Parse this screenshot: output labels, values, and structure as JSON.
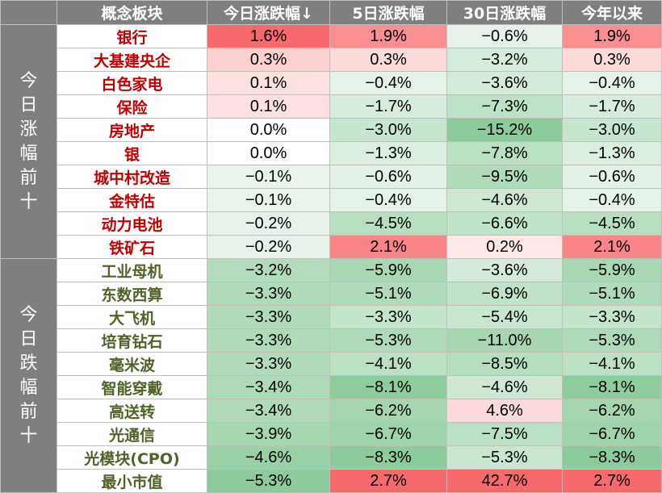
{
  "headers": [
    "概念板块",
    "今日涨跌幅↓",
    "5日涨跌幅",
    "30日涨跌幅",
    "今年以来"
  ],
  "groups": [
    {
      "label": "今日涨幅前十",
      "kind": "gain",
      "rows": [
        [
          "银行",
          "1.6%",
          "1.9%",
          "−0.6%",
          "1.9%"
        ],
        [
          "大基建央企",
          "0.3%",
          "0.3%",
          "−3.2%",
          "0.3%"
        ],
        [
          "白色家电",
          "0.1%",
          "−0.4%",
          "−3.6%",
          "−0.4%"
        ],
        [
          "保险",
          "0.1%",
          "−1.7%",
          "−7.3%",
          "−1.7%"
        ],
        [
          "房地产",
          "0.0%",
          "−3.0%",
          "−15.2%",
          "−3.0%"
        ],
        [
          "银",
          "0.0%",
          "−1.3%",
          "−7.8%",
          "−1.3%"
        ],
        [
          "城中村改造",
          "−0.1%",
          "−0.6%",
          "−9.5%",
          "−0.6%"
        ],
        [
          "金特估",
          "−0.1%",
          "−0.4%",
          "−4.6%",
          "−0.4%"
        ],
        [
          "动力电池",
          "−0.2%",
          "−4.5%",
          "−6.6%",
          "−4.5%"
        ],
        [
          "铁矿石",
          "−0.2%",
          "2.1%",
          "0.2%",
          "2.1%"
        ]
      ],
      "values": [
        [
          1.6,
          1.9,
          -0.6,
          1.9
        ],
        [
          0.3,
          0.3,
          -3.2,
          0.3
        ],
        [
          0.1,
          -0.4,
          -3.6,
          -0.4
        ],
        [
          0.1,
          -1.7,
          -7.3,
          -1.7
        ],
        [
          0.0,
          -3.0,
          -15.2,
          -3.0
        ],
        [
          0.0,
          -1.3,
          -7.8,
          -1.3
        ],
        [
          -0.1,
          -0.6,
          -9.5,
          -0.6
        ],
        [
          -0.1,
          -0.4,
          -4.6,
          -0.4
        ],
        [
          -0.2,
          -4.5,
          -6.6,
          -4.5
        ],
        [
          -0.2,
          2.1,
          0.2,
          2.1
        ]
      ]
    },
    {
      "label": "今日跌幅前十",
      "kind": "loss",
      "rows": [
        [
          "工业母机",
          "−3.2%",
          "−5.9%",
          "−3.6%",
          "−5.9%"
        ],
        [
          "东数西算",
          "−3.3%",
          "−5.1%",
          "−6.9%",
          "−5.1%"
        ],
        [
          "大飞机",
          "−3.3%",
          "−3.3%",
          "−5.4%",
          "−3.3%"
        ],
        [
          "培育钻石",
          "−3.3%",
          "−5.3%",
          "−11.0%",
          "−5.3%"
        ],
        [
          "毫米波",
          "−3.3%",
          "−4.1%",
          "−8.5%",
          "−4.1%"
        ],
        [
          "智能穿戴",
          "−3.4%",
          "−8.1%",
          "−4.6%",
          "−8.1%"
        ],
        [
          "高送转",
          "−3.4%",
          "−6.2%",
          "4.6%",
          "−6.2%"
        ],
        [
          "光通信",
          "−3.9%",
          "−6.7%",
          "−7.5%",
          "−6.7%"
        ],
        [
          "光模块(CPO)",
          "−4.6%",
          "−8.3%",
          "−5.3%",
          "−8.3%"
        ],
        [
          "最小市值",
          "−5.3%",
          "2.7%",
          "42.7%",
          "2.7%"
        ]
      ],
      "values": [
        [
          -3.2,
          -5.9,
          -3.6,
          -5.9
        ],
        [
          -3.3,
          -5.1,
          -6.9,
          -5.1
        ],
        [
          -3.3,
          -3.3,
          -5.4,
          -3.3
        ],
        [
          -3.3,
          -5.3,
          -11.0,
          -5.3
        ],
        [
          -3.3,
          -4.1,
          -8.5,
          -4.1
        ],
        [
          -3.4,
          -8.1,
          -4.6,
          -8.1
        ],
        [
          -3.4,
          -6.2,
          4.6,
          -6.2
        ],
        [
          -3.9,
          -6.7,
          -7.5,
          -6.7
        ],
        [
          -4.6,
          -8.3,
          -5.3,
          -8.3
        ],
        [
          -5.3,
          2.7,
          42.7,
          2.7
        ]
      ]
    }
  ],
  "colors": {
    "header_bg": "#7f7f7f",
    "header_text": "#ffffff",
    "gain_name": "#c00000",
    "loss_name": "#4f6228",
    "positive_scale_light": "#fde8e8",
    "positive_scale_dark": "#f8696b",
    "negative_scale_light": "#eaf4ec",
    "negative_scale_dark": "#8ccc9c",
    "border": "#bfbfbf"
  }
}
